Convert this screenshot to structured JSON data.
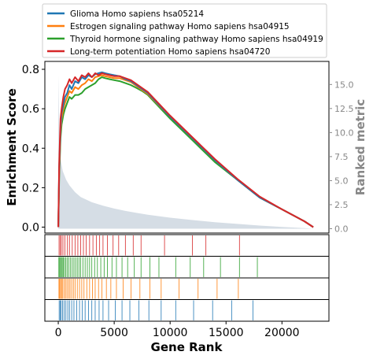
{
  "chart_data": {
    "type": "line",
    "title": "",
    "xlabel": "Gene Rank",
    "ylabel": "Enrichment Score",
    "y2label": "Ranked metric",
    "xlim": [
      -1200,
      24200
    ],
    "ylim": [
      -0.03,
      0.84
    ],
    "y2lim": [
      -0.45,
      17.4
    ],
    "xticks": [
      0,
      5000,
      10000,
      15000,
      20000
    ],
    "yticks": [
      0.0,
      0.2,
      0.4,
      0.6,
      0.8
    ],
    "y2ticks": [
      0.0,
      2.5,
      5.0,
      7.5,
      10.0,
      12.5,
      15.0
    ],
    "grid": false,
    "legend_position": "top",
    "ranked_metric": {
      "color": "#d5dde5",
      "x": [
        0,
        100,
        200,
        400,
        700,
        1000,
        1500,
        2000,
        3000,
        4000,
        5000,
        6000,
        7000,
        8000,
        10000,
        12000,
        14000,
        16000,
        18000,
        20000,
        22000,
        22800
      ],
      "values": [
        16.0,
        9.0,
        7.3,
        6.0,
        5.1,
        4.5,
        3.8,
        3.3,
        2.75,
        2.4,
        2.1,
        1.85,
        1.65,
        1.45,
        1.15,
        0.9,
        0.68,
        0.5,
        0.33,
        0.18,
        0.06,
        0.0
      ]
    },
    "series": [
      {
        "name": "Glioma Homo sapiens hsa05214",
        "color": "#1f77b4",
        "x": [
          0,
          80,
          200,
          300,
          450,
          600,
          800,
          1000,
          1200,
          1500,
          1800,
          2100,
          2400,
          2700,
          3000,
          3300,
          3600,
          3900,
          4200,
          4600,
          5000,
          5500,
          6000,
          6500,
          7000,
          7500,
          8000,
          10000,
          12000,
          14000,
          16000,
          18000,
          20000,
          22000,
          22800
        ],
        "values": [
          0.0,
          0.3,
          0.5,
          0.58,
          0.62,
          0.66,
          0.68,
          0.72,
          0.7,
          0.74,
          0.73,
          0.76,
          0.75,
          0.77,
          0.76,
          0.775,
          0.78,
          0.785,
          0.78,
          0.775,
          0.77,
          0.765,
          0.75,
          0.74,
          0.72,
          0.7,
          0.68,
          0.56,
          0.45,
          0.34,
          0.24,
          0.15,
          0.09,
          0.03,
          0.0
        ]
      },
      {
        "name": "Estrogen signaling pathway Homo sapiens hsa04915",
        "color": "#ff7f0e",
        "x": [
          0,
          80,
          200,
          300,
          450,
          600,
          800,
          1000,
          1200,
          1500,
          1800,
          2100,
          2400,
          2700,
          3000,
          3300,
          3600,
          3900,
          4200,
          4600,
          5000,
          5500,
          6000,
          6500,
          7000,
          7500,
          8000,
          10000,
          12000,
          14000,
          16000,
          18000,
          20000,
          22000,
          22800
        ],
        "values": [
          0.0,
          0.28,
          0.48,
          0.55,
          0.6,
          0.63,
          0.66,
          0.69,
          0.68,
          0.71,
          0.7,
          0.72,
          0.73,
          0.75,
          0.74,
          0.76,
          0.765,
          0.77,
          0.765,
          0.76,
          0.755,
          0.755,
          0.745,
          0.735,
          0.715,
          0.695,
          0.675,
          0.56,
          0.45,
          0.34,
          0.24,
          0.15,
          0.09,
          0.03,
          0.0
        ]
      },
      {
        "name": "Thyroid hormone signaling pathway Homo sapiens hsa04919",
        "color": "#2ca02c",
        "x": [
          0,
          80,
          200,
          300,
          450,
          600,
          800,
          1000,
          1200,
          1500,
          1800,
          2100,
          2400,
          2700,
          3000,
          3300,
          3600,
          3900,
          4200,
          4600,
          5000,
          5500,
          6000,
          6500,
          7000,
          7500,
          8000,
          10000,
          12000,
          14000,
          16000,
          18000,
          20000,
          22000,
          22800
        ],
        "values": [
          0.0,
          0.25,
          0.45,
          0.52,
          0.57,
          0.6,
          0.63,
          0.66,
          0.65,
          0.67,
          0.67,
          0.68,
          0.7,
          0.71,
          0.72,
          0.73,
          0.75,
          0.76,
          0.755,
          0.75,
          0.745,
          0.74,
          0.73,
          0.72,
          0.705,
          0.69,
          0.67,
          0.55,
          0.44,
          0.33,
          0.24,
          0.15,
          0.09,
          0.03,
          0.0
        ]
      },
      {
        "name": "Long-term potentiation Homo sapiens hsa04720",
        "color": "#d62728",
        "x": [
          0,
          80,
          200,
          300,
          450,
          600,
          800,
          1000,
          1200,
          1500,
          1800,
          2100,
          2400,
          2700,
          3000,
          3300,
          3600,
          3900,
          4200,
          4600,
          5000,
          5500,
          6000,
          6500,
          7000,
          7500,
          8000,
          10000,
          12000,
          14000,
          16000,
          18000,
          20000,
          22000,
          22800
        ],
        "values": [
          0.0,
          0.32,
          0.55,
          0.6,
          0.66,
          0.7,
          0.72,
          0.75,
          0.73,
          0.76,
          0.74,
          0.77,
          0.76,
          0.78,
          0.76,
          0.78,
          0.77,
          0.78,
          0.775,
          0.77,
          0.765,
          0.765,
          0.755,
          0.745,
          0.725,
          0.705,
          0.685,
          0.565,
          0.455,
          0.345,
          0.245,
          0.155,
          0.09,
          0.03,
          0.0
        ]
      }
    ],
    "hit_tracks": [
      {
        "name": "Long-term potentiation Homo sapiens hsa04720",
        "color": "#d62728",
        "positions": [
          70,
          180,
          280,
          420,
          600,
          820,
          1000,
          1250,
          1500,
          1750,
          2000,
          2250,
          2500,
          2800,
          3100,
          3400,
          3700,
          4000,
          4400,
          4900,
          5400,
          6000,
          6700,
          7400,
          9500,
          12000,
          13200,
          16200
        ]
      },
      {
        "name": "Thyroid hormone signaling pathway Homo sapiens hsa04919",
        "color": "#2ca02c",
        "positions": [
          50,
          120,
          200,
          280,
          360,
          450,
          560,
          680,
          800,
          950,
          1100,
          1250,
          1400,
          1550,
          1700,
          1850,
          2000,
          2200,
          2400,
          2600,
          2800,
          3000,
          3250,
          3500,
          3800,
          4100,
          4400,
          4800,
          5200,
          5700,
          6200,
          6800,
          7400,
          8200,
          9000,
          10500,
          11800,
          13000,
          14500,
          16200,
          17800
        ]
      },
      {
        "name": "Estrogen signaling pathway Homo sapiens hsa04915",
        "color": "#ff7f0e",
        "positions": [
          60,
          130,
          210,
          300,
          400,
          520,
          650,
          780,
          920,
          1050,
          1200,
          1350,
          1500,
          1700,
          1900,
          2100,
          2300,
          2550,
          2800,
          3050,
          3300,
          3600,
          3900,
          4300,
          4700,
          5200,
          5800,
          6500,
          7300,
          8200,
          9200,
          10800,
          12500,
          14200,
          16100
        ]
      },
      {
        "name": "Glioma Homo sapiens hsa05214",
        "color": "#1f77b4",
        "positions": [
          80,
          170,
          260,
          380,
          520,
          680,
          850,
          1000,
          1200,
          1400,
          1650,
          1900,
          2150,
          2400,
          2700,
          3000,
          3300,
          3650,
          4000,
          4500,
          5100,
          5700,
          6400,
          7200,
          8100,
          9200,
          10500,
          12100,
          13800,
          15500,
          17400
        ]
      }
    ]
  }
}
